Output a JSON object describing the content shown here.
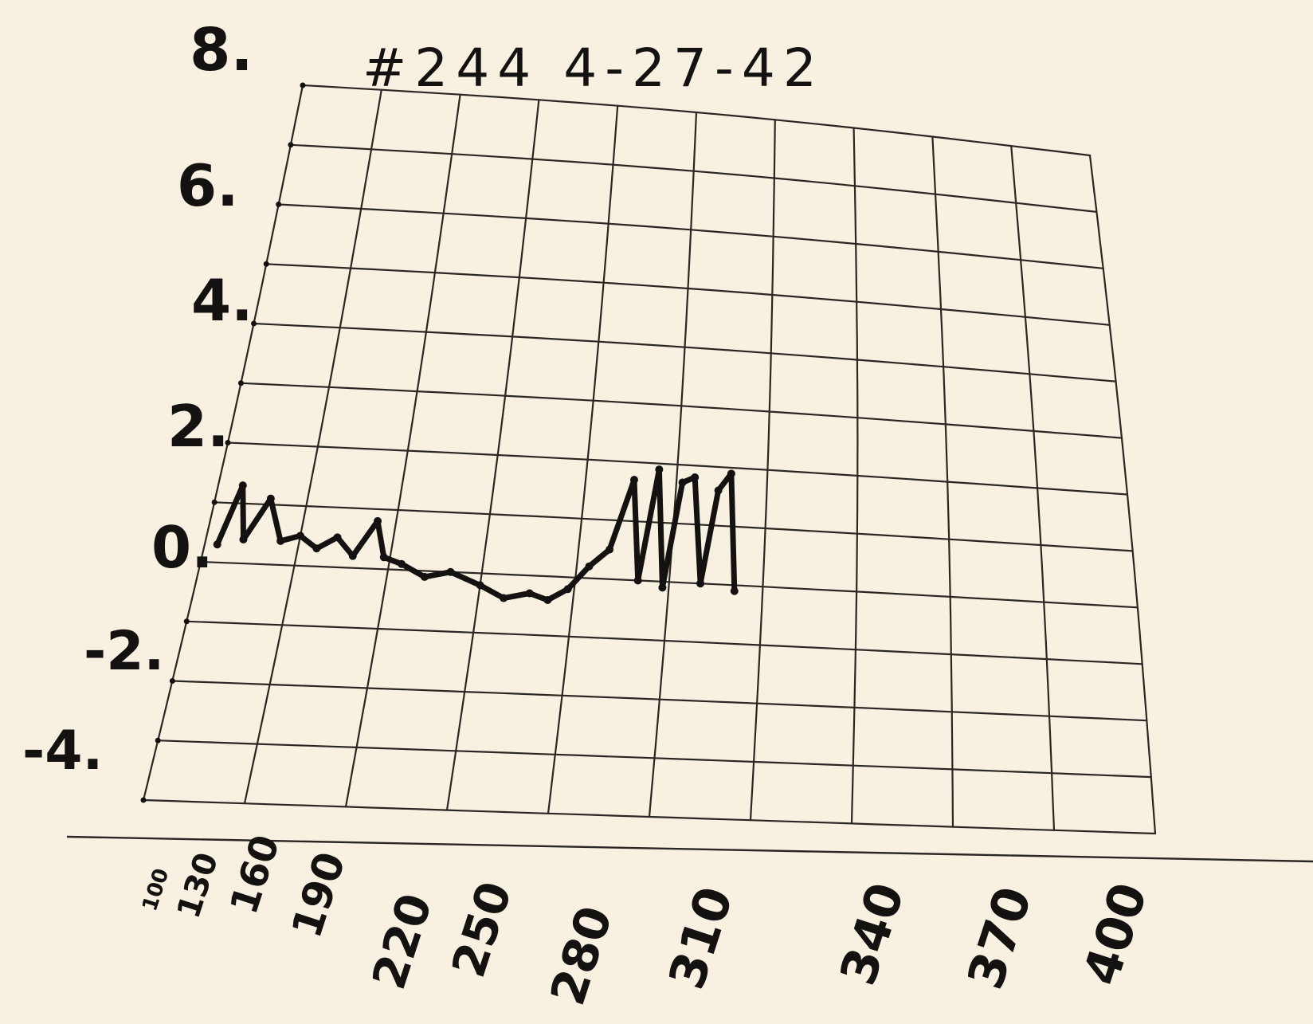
{
  "chart_data": {
    "type": "line",
    "title": "#244 4-27-42",
    "xlabel": "",
    "ylabel": "",
    "x_tick_labels": [
      "100",
      "130",
      "160",
      "190",
      "220",
      "250",
      "280",
      "310",
      "340",
      "370",
      "400"
    ],
    "y_tick_labels": [
      "8.",
      "6.",
      "4.",
      "2.",
      "0.",
      "-2.",
      "-4."
    ],
    "xlim": [
      100,
      400
    ],
    "ylim": [
      -4,
      8
    ],
    "grid": true,
    "grid_shape": "curved",
    "series": [
      {
        "color": "#141210",
        "points": [
          {
            "x": 104,
            "y": 0.3
          },
          {
            "x": 108,
            "y": 1.3
          },
          {
            "x": 112,
            "y": 0.4
          },
          {
            "x": 118,
            "y": 1.1
          },
          {
            "x": 124,
            "y": 0.4
          },
          {
            "x": 130,
            "y": 0.5
          },
          {
            "x": 136,
            "y": 0.3
          },
          {
            "x": 142,
            "y": 0.5
          },
          {
            "x": 148,
            "y": 0.2
          },
          {
            "x": 154,
            "y": 0.8
          },
          {
            "x": 158,
            "y": 0.2
          },
          {
            "x": 164,
            "y": 0.1
          },
          {
            "x": 172,
            "y": -0.1
          },
          {
            "x": 180,
            "y": 0.0
          },
          {
            "x": 190,
            "y": -0.2
          },
          {
            "x": 198,
            "y": -0.4
          },
          {
            "x": 206,
            "y": -0.3
          },
          {
            "x": 212,
            "y": -0.4
          },
          {
            "x": 218,
            "y": -0.2
          },
          {
            "x": 224,
            "y": 0.2
          },
          {
            "x": 230,
            "y": 0.5
          },
          {
            "x": 236,
            "y": 1.7
          },
          {
            "x": 240,
            "y": 0.0
          },
          {
            "x": 244,
            "y": 1.9
          },
          {
            "x": 248,
            "y": -0.1
          },
          {
            "x": 252,
            "y": 1.7
          },
          {
            "x": 256,
            "y": 1.8
          },
          {
            "x": 260,
            "y": 0.0
          },
          {
            "x": 264,
            "y": 1.6
          },
          {
            "x": 268,
            "y": 1.9
          },
          {
            "x": 271,
            "y": -0.1
          }
        ]
      }
    ]
  }
}
